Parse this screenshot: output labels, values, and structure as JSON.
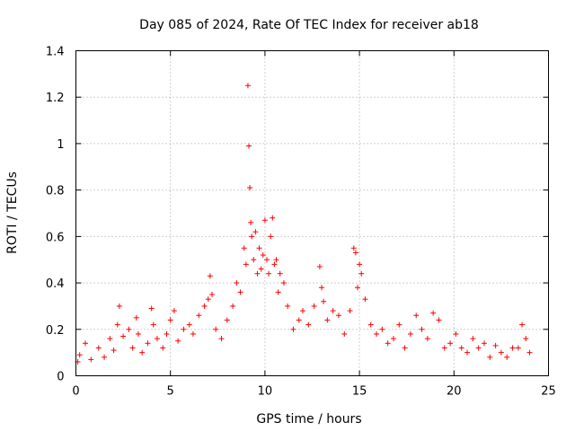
{
  "chart_data": {
    "type": "scatter",
    "title": "Day 085 of 2024, Rate Of TEC Index for receiver ab18",
    "xlabel": "GPS time / hours",
    "ylabel": "ROTI / TECUs",
    "xlim": [
      0,
      25
    ],
    "ylim": [
      0,
      1.4
    ],
    "xticks": [
      "0",
      "5",
      "10",
      "15",
      "20",
      "25"
    ],
    "yticks": [
      "0",
      "0.2",
      "0.4",
      "0.6",
      "0.8",
      "1",
      "1.2",
      "1.4"
    ],
    "grid": true,
    "marker": "+",
    "color": "#ff0000",
    "series": [
      {
        "x": [
          0.1,
          0.2,
          0.5,
          0.8,
          1.2,
          1.5,
          1.8,
          2.0,
          2.2,
          2.3,
          2.5,
          2.8,
          3.0,
          3.2,
          3.3,
          3.5,
          3.8,
          4.0,
          4.1,
          4.3,
          4.6,
          4.8,
          5.0,
          5.2,
          5.4,
          5.7,
          6.0,
          6.2,
          6.5,
          6.8,
          7.0,
          7.1,
          7.2,
          7.4,
          7.7,
          8.0,
          8.3,
          8.5,
          8.7,
          8.9,
          9.0,
          9.1,
          9.15,
          9.2,
          9.25,
          9.3,
          9.4,
          9.5,
          9.6,
          9.7,
          9.8,
          9.9,
          10.0,
          10.1,
          10.2,
          10.3,
          10.4,
          10.5,
          10.6,
          10.7,
          10.8,
          11.0,
          11.2,
          11.5,
          11.8,
          12.0,
          12.3,
          12.6,
          12.9,
          13.0,
          13.1,
          13.3,
          13.6,
          13.9,
          14.2,
          14.5,
          14.7,
          14.8,
          14.9,
          15.0,
          15.1,
          15.3,
          15.6,
          15.9,
          16.2,
          16.5,
          16.8,
          17.1,
          17.4,
          17.7,
          18.0,
          18.3,
          18.6,
          18.9,
          19.2,
          19.5,
          19.8,
          20.1,
          20.4,
          20.7,
          21.0,
          21.3,
          21.6,
          21.9,
          22.2,
          22.5,
          22.8,
          23.1,
          23.4,
          23.6,
          23.8,
          24.0
        ],
        "y": [
          0.06,
          0.09,
          0.14,
          0.07,
          0.12,
          0.08,
          0.16,
          0.11,
          0.22,
          0.3,
          0.17,
          0.2,
          0.12,
          0.25,
          0.18,
          0.1,
          0.14,
          0.29,
          0.22,
          0.16,
          0.12,
          0.18,
          0.24,
          0.28,
          0.15,
          0.2,
          0.22,
          0.18,
          0.26,
          0.3,
          0.33,
          0.43,
          0.35,
          0.2,
          0.16,
          0.24,
          0.3,
          0.4,
          0.36,
          0.55,
          0.48,
          1.25,
          0.99,
          0.81,
          0.66,
          0.6,
          0.5,
          0.62,
          0.44,
          0.55,
          0.46,
          0.52,
          0.67,
          0.5,
          0.44,
          0.6,
          0.68,
          0.48,
          0.5,
          0.36,
          0.44,
          0.4,
          0.3,
          0.2,
          0.24,
          0.28,
          0.22,
          0.3,
          0.47,
          0.38,
          0.32,
          0.24,
          0.28,
          0.26,
          0.18,
          0.28,
          0.55,
          0.53,
          0.38,
          0.48,
          0.44,
          0.33,
          0.22,
          0.18,
          0.2,
          0.14,
          0.16,
          0.22,
          0.12,
          0.18,
          0.26,
          0.2,
          0.16,
          0.27,
          0.24,
          0.12,
          0.14,
          0.18,
          0.12,
          0.1,
          0.16,
          0.12,
          0.14,
          0.08,
          0.13,
          0.1,
          0.08,
          0.12,
          0.12,
          0.22,
          0.16,
          0.1
        ]
      }
    ]
  }
}
